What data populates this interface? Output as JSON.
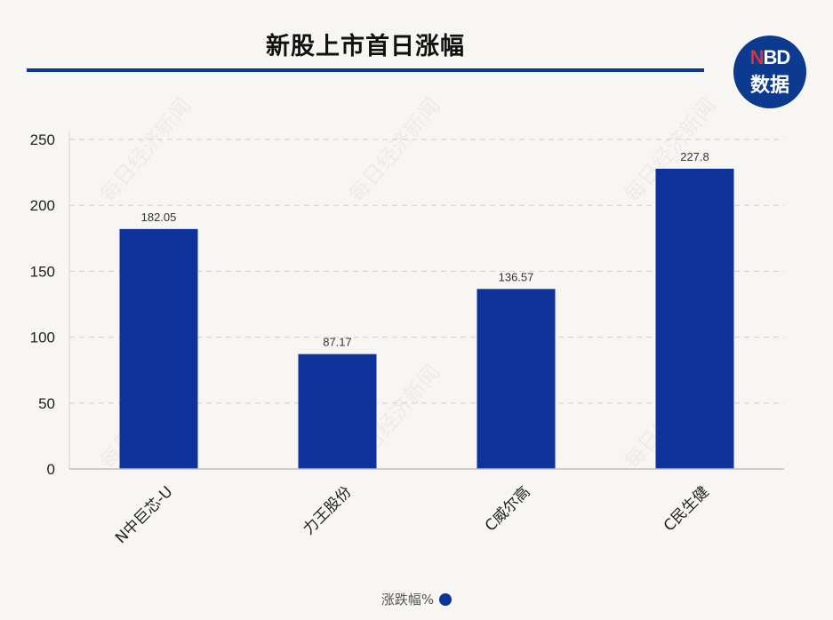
{
  "title": "新股上市首日涨幅",
  "logo": {
    "top_highlight": "N",
    "top_rest": "BD",
    "bottom": "数据"
  },
  "watermark": "每日经济新闻",
  "colors": {
    "bar": "#0d339b",
    "accent": "#0b3a8e",
    "grid": "#cfcfcf"
  },
  "chart_data": {
    "type": "bar",
    "categories": [
      "N中巨芯-U",
      "力王股份",
      "C威尔高",
      "C民生健"
    ],
    "series": [
      {
        "name": "涨跌幅%",
        "values": [
          182.05,
          87.17,
          136.57,
          227.8
        ]
      }
    ],
    "data_labels": [
      "182.05",
      "87.17",
      "136.57",
      "227.8"
    ],
    "ylim": [
      0,
      250
    ],
    "yticks": [
      0,
      50,
      100,
      150,
      200,
      250
    ],
    "grid": true,
    "legend_position": "bottom"
  }
}
